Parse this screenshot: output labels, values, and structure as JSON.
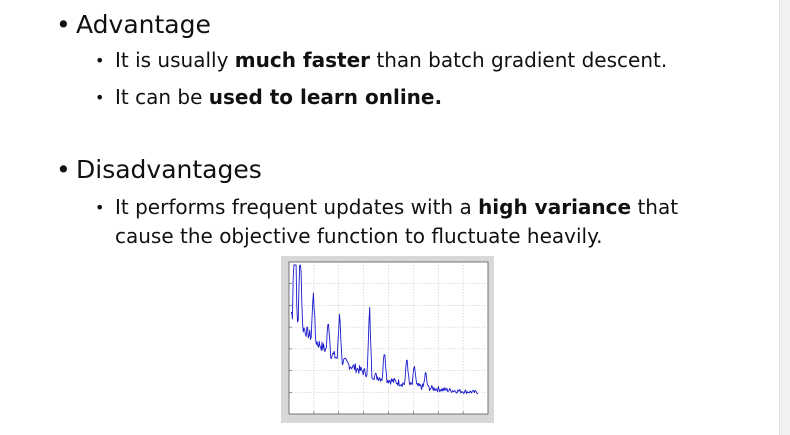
{
  "slide": {
    "advantage": {
      "heading": "Advantage",
      "bullets": [
        {
          "pre": "It is usually ",
          "bold": "much faster",
          "post": " than batch gradient descent."
        },
        {
          "pre": "It can be ",
          "bold": "used to learn online.",
          "post": ""
        }
      ]
    },
    "disadvantages": {
      "heading": "Disadvantages",
      "bullets": [
        {
          "pre": "It performs frequent updates with a ",
          "bold": "high variance",
          "post": " that",
          "line2": "cause the objective function to fluctuate heavily."
        }
      ]
    }
  },
  "figure": {
    "type": "line",
    "series_color": "#1a1acc",
    "grid": true
  }
}
